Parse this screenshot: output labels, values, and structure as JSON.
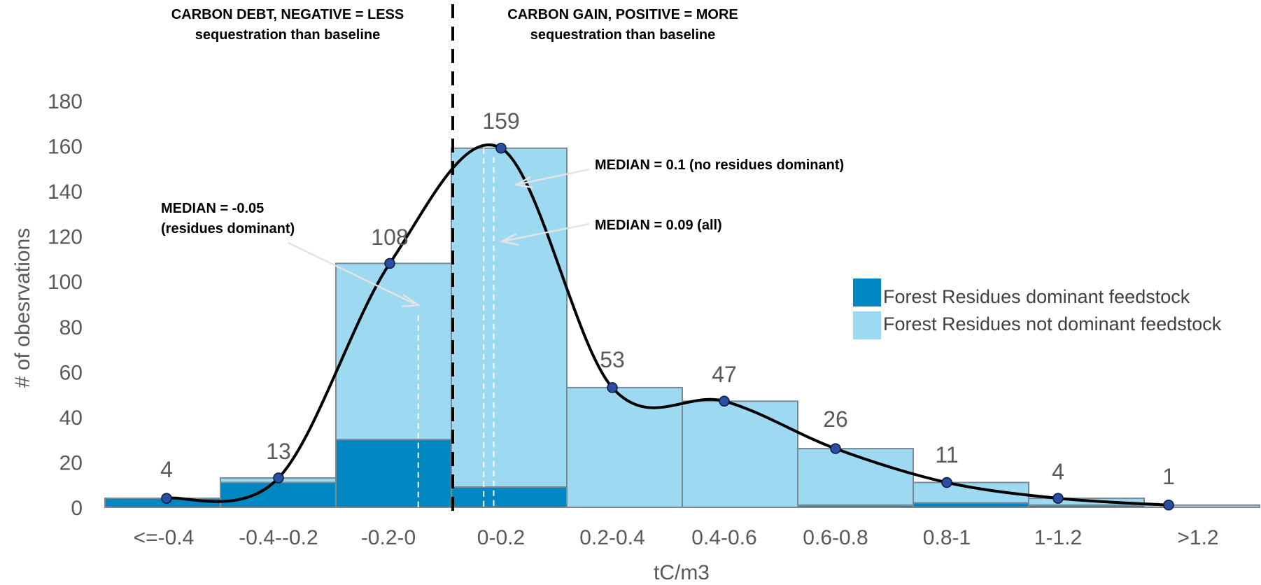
{
  "chart_data": {
    "type": "bar",
    "xlabel": "tC/m3",
    "ylabel": "# of obesrvations",
    "ylim": [
      0,
      180
    ],
    "yticks": [
      0,
      20,
      40,
      60,
      80,
      100,
      120,
      140,
      160,
      180
    ],
    "categories": [
      "<=-0.4",
      "-0.4--0.2",
      "-0.2-0",
      "0-0.2",
      "0.2-0.4",
      "0.4-0.6",
      "0.6-0.8",
      "0.8-1",
      "1-1.2",
      ">1.2"
    ],
    "series": [
      {
        "name": "Forest Residues dominant feedstock",
        "color": "#0087C1",
        "values": [
          4,
          11,
          30,
          9,
          0,
          0,
          1,
          2,
          1,
          0
        ]
      },
      {
        "name": "Forest Residues not dominant feedstock",
        "color": "#9ED9F2",
        "values": [
          0,
          2,
          78,
          150,
          53,
          47,
          25,
          9,
          3,
          1
        ]
      }
    ],
    "totals": [
      4,
      13,
      108,
      159,
      53,
      47,
      26,
      11,
      4,
      1
    ],
    "total_labels": [
      "4",
      "13",
      "108",
      "159",
      "53",
      "47",
      "26",
      "11",
      "4",
      "1"
    ],
    "curve_points": [
      4,
      13,
      108,
      159,
      53,
      47,
      26,
      11,
      4,
      1
    ],
    "legend_position": "right",
    "grid": false,
    "divider_x": 0,
    "annotations": {
      "left_header_line1": "CARBON DEBT, NEGATIVE = LESS",
      "left_header_line2": "sequestration than baseline",
      "right_header_line1": "CARBON GAIN, POSITIVE = MORE",
      "right_header_line2": "sequestration than baseline",
      "median_residues_line1": "MEDIAN = -0.05",
      "median_residues_line2": "(residues dominant)",
      "median_no_residues": "MEDIAN = 0.1 (no residues dominant)",
      "median_all": "MEDIAN = 0.09 (all)"
    },
    "medians": {
      "residues_dominant": -0.05,
      "no_residues_dominant": 0.1,
      "all": 0.09
    }
  }
}
